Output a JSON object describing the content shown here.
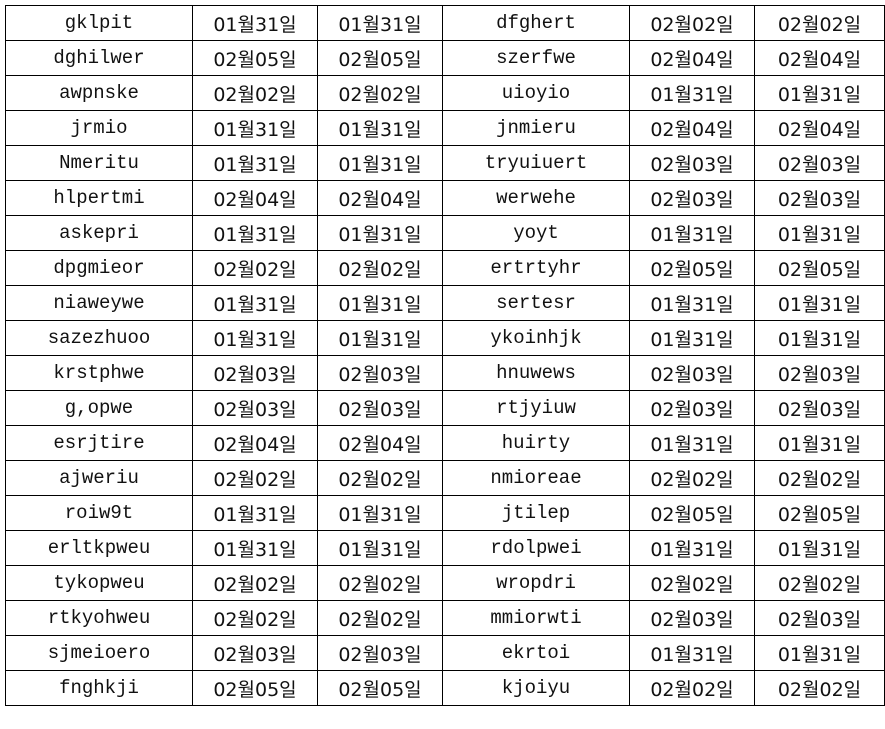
{
  "sheet": {
    "rows": [
      [
        "gklpit",
        "01월31일",
        "01월31일",
        "dfghert",
        "02월02일",
        "02월02일"
      ],
      [
        "dghilwer",
        "02월05일",
        "02월05일",
        "szerfwe",
        "02월04일",
        "02월04일"
      ],
      [
        "awpnske",
        "02월02일",
        "02월02일",
        "uioyio",
        "01월31일",
        "01월31일"
      ],
      [
        "jrmio",
        "01월31일",
        "01월31일",
        "jnmieru",
        "02월04일",
        "02월04일"
      ],
      [
        "Nmeritu",
        "01월31일",
        "01월31일",
        "tryuiuert",
        "02월03일",
        "02월03일"
      ],
      [
        "hlpertmi",
        "02월04일",
        "02월04일",
        "werwehe",
        "02월03일",
        "02월03일"
      ],
      [
        "askepri",
        "01월31일",
        "01월31일",
        "yoyt",
        "01월31일",
        "01월31일"
      ],
      [
        "dpgmieor",
        "02월02일",
        "02월02일",
        "ertrtyhr",
        "02월05일",
        "02월05일"
      ],
      [
        "niaweywe",
        "01월31일",
        "01월31일",
        "sertesr",
        "01월31일",
        "01월31일"
      ],
      [
        "sazezhuoo",
        "01월31일",
        "01월31일",
        "ykoinhjk",
        "01월31일",
        "01월31일"
      ],
      [
        "krstphwe",
        "02월03일",
        "02월03일",
        "hnuwews",
        "02월03일",
        "02월03일"
      ],
      [
        "g,opwe",
        "02월03일",
        "02월03일",
        "rtjyiuw",
        "02월03일",
        "02월03일"
      ],
      [
        "esrjtire",
        "02월04일",
        "02월04일",
        "huirty",
        "01월31일",
        "01월31일"
      ],
      [
        "ajweriu",
        "02월02일",
        "02월02일",
        "nmioreae",
        "02월02일",
        "02월02일"
      ],
      [
        "roiw9t",
        "01월31일",
        "01월31일",
        "jtilep",
        "02월05일",
        "02월05일"
      ],
      [
        "erltkpweu",
        "01월31일",
        "01월31일",
        "rdolpwei",
        "01월31일",
        "01월31일"
      ],
      [
        "tykopweu",
        "02월02일",
        "02월02일",
        "wropdri",
        "02월02일",
        "02월02일"
      ],
      [
        "rtkyohweu",
        "02월02일",
        "02월02일",
        "mmiorwti",
        "02월03일",
        "02월03일"
      ],
      [
        "sjmeioero",
        "02월03일",
        "02월03일",
        "ekrtoi",
        "01월31일",
        "01월31일"
      ],
      [
        "fnghkji",
        "02월05일",
        "02월05일",
        "kjoiyu",
        "02월02일",
        "02월02일"
      ]
    ]
  }
}
